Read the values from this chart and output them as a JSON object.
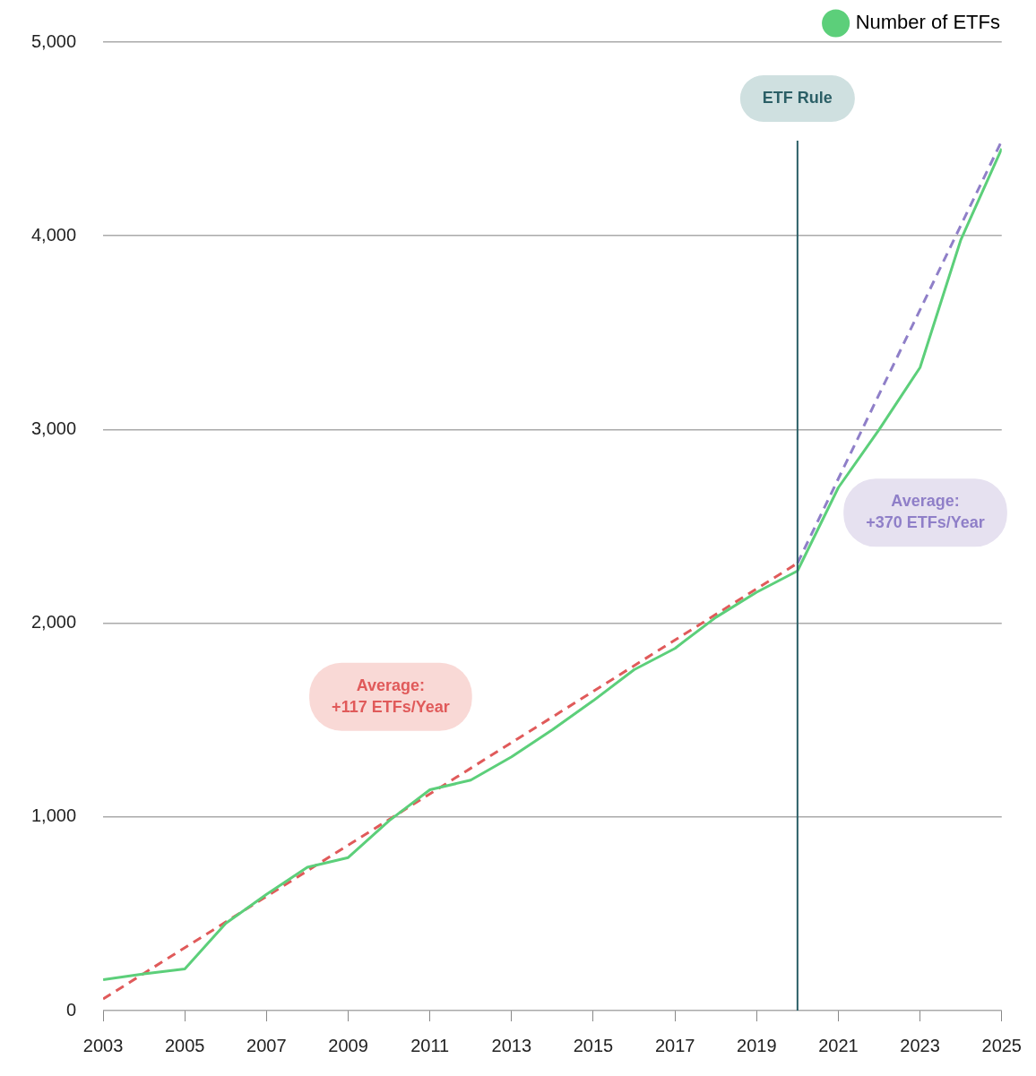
{
  "chart_data": {
    "type": "line",
    "xlim": [
      2003,
      2025
    ],
    "xticks": [
      2003,
      2005,
      2007,
      2009,
      2011,
      2013,
      2015,
      2017,
      2019,
      2021,
      2023,
      2025
    ],
    "ylim": [
      0,
      5000
    ],
    "yticks": [
      {
        "value": 0,
        "label": "0"
      },
      {
        "value": 1000,
        "label": "1,000"
      },
      {
        "value": 2000,
        "label": "2,000"
      },
      {
        "value": 3000,
        "label": "3,000"
      },
      {
        "value": 4000,
        "label": "4,000"
      },
      {
        "value": 5000,
        "label": "5,000"
      }
    ],
    "grid": "y",
    "legend": "top right",
    "line_style": "solid",
    "marker": "none",
    "series": [
      {
        "name": "Number of ETFs",
        "color": "#5ccf7a",
        "x": [
          2003,
          2004,
          2005,
          2006,
          2007,
          2008,
          2009,
          2010,
          2011,
          2012,
          2013,
          2014,
          2015,
          2016,
          2017,
          2018,
          2019,
          2020,
          2021,
          2022,
          2023,
          2024,
          2025
        ],
        "values": [
          160,
          190,
          215,
          450,
          600,
          740,
          790,
          980,
          1140,
          1190,
          1310,
          1450,
          1600,
          1760,
          1870,
          2030,
          2160,
          2270,
          2700,
          3000,
          3320,
          3980,
          4450
        ]
      },
      {
        "type": "line",
        "line_style": "dashed",
        "color": "#e05a5a",
        "x": [
          2003,
          2020
        ],
        "values": [
          60,
          2310
        ]
      },
      {
        "type": "line",
        "line_style": "dashed",
        "color": "#8f7fc8",
        "x": [
          2020,
          2025
        ],
        "values": [
          2310,
          4490
        ]
      }
    ],
    "ref_lines": [
      {
        "axis": "x",
        "value": 2020,
        "label": "ETF Rule",
        "color": "#2b5f66"
      }
    ],
    "annotations": [
      "Average:\n+117 ETFs/Year",
      "Average:\n+370 ETFs/Year"
    ]
  }
}
